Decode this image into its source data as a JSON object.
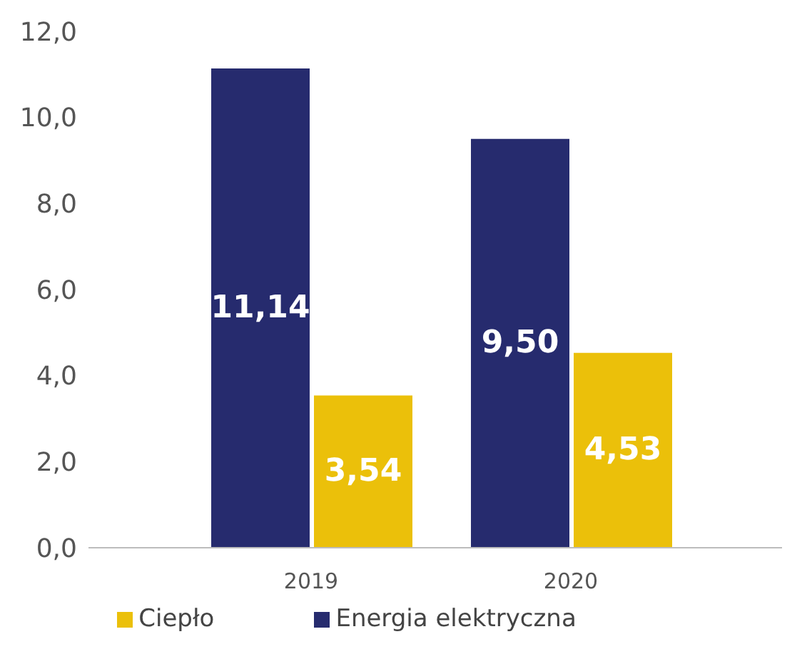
{
  "chart_data": {
    "type": "bar",
    "categories": [
      "2019",
      "2020"
    ],
    "series": [
      {
        "name": "Energia elektryczna",
        "color": "#262b6e",
        "values": [
          11.14,
          9.5
        ],
        "value_labels": [
          "11,14",
          "9,50"
        ]
      },
      {
        "name": "Ciepło",
        "color": "#ebc00a",
        "values": [
          3.54,
          4.53
        ],
        "value_labels": [
          "3,54",
          "4,53"
        ]
      }
    ],
    "ylim": [
      0,
      12
    ],
    "yticks": [
      {
        "value": 0,
        "label": "0,0"
      },
      {
        "value": 2,
        "label": "2,0"
      },
      {
        "value": 4,
        "label": "4,0"
      },
      {
        "value": 6,
        "label": "6,0"
      },
      {
        "value": 8,
        "label": "8,0"
      },
      {
        "value": 10,
        "label": "10,0"
      },
      {
        "value": 12,
        "label": "12,0"
      }
    ],
    "grid": false,
    "legend": "bottom"
  }
}
